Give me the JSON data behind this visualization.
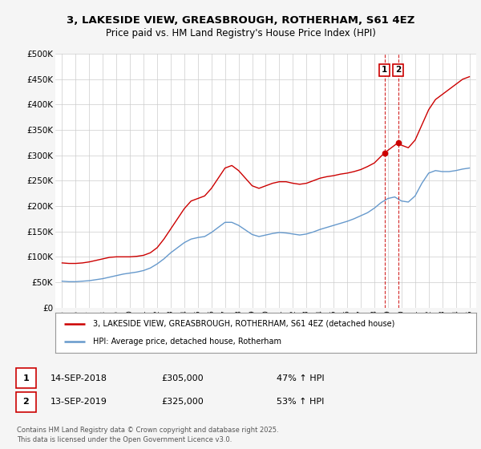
{
  "title": "3, LAKESIDE VIEW, GREASBROUGH, ROTHERHAM, S61 4EZ",
  "subtitle": "Price paid vs. HM Land Registry's House Price Index (HPI)",
  "ylabel_ticks": [
    "£0",
    "£50K",
    "£100K",
    "£150K",
    "£200K",
    "£250K",
    "£300K",
    "£350K",
    "£400K",
    "£450K",
    "£500K"
  ],
  "ytick_values": [
    0,
    50000,
    100000,
    150000,
    200000,
    250000,
    300000,
    350000,
    400000,
    450000,
    500000
  ],
  "ylim": [
    0,
    500000
  ],
  "xlim_start": 1994.5,
  "xlim_end": 2025.5,
  "red_color": "#cc0000",
  "blue_color": "#6699cc",
  "dashed_color": "#cc0000",
  "legend1_label": "3, LAKESIDE VIEW, GREASBROUGH, ROTHERHAM, S61 4EZ (detached house)",
  "legend2_label": "HPI: Average price, detached house, Rotherham",
  "annotation1_date": "14-SEP-2018",
  "annotation1_price": "£305,000",
  "annotation1_pct": "47% ↑ HPI",
  "annotation2_date": "13-SEP-2019",
  "annotation2_price": "£325,000",
  "annotation2_pct": "53% ↑ HPI",
  "footer": "Contains HM Land Registry data © Crown copyright and database right 2025.\nThis data is licensed under the Open Government Licence v3.0.",
  "red_x": [
    1995.0,
    1995.5,
    1996.0,
    1996.5,
    1997.0,
    1997.5,
    1998.0,
    1998.5,
    1999.0,
    1999.5,
    2000.0,
    2000.5,
    2001.0,
    2001.5,
    2002.0,
    2002.5,
    2003.0,
    2003.5,
    2004.0,
    2004.5,
    2005.0,
    2005.5,
    2006.0,
    2006.5,
    2007.0,
    2007.5,
    2008.0,
    2008.5,
    2009.0,
    2009.5,
    2010.0,
    2010.5,
    2011.0,
    2011.5,
    2012.0,
    2012.5,
    2013.0,
    2013.5,
    2014.0,
    2014.5,
    2015.0,
    2015.5,
    2016.0,
    2016.5,
    2017.0,
    2017.5,
    2018.0,
    2018.75,
    2019.75,
    2020.0,
    2020.5,
    2021.0,
    2021.5,
    2022.0,
    2022.5,
    2023.0,
    2023.5,
    2024.0,
    2024.5,
    2025.0
  ],
  "red_y": [
    88000,
    87000,
    87000,
    88000,
    90000,
    93000,
    96000,
    99000,
    100000,
    100000,
    100000,
    101000,
    103000,
    108000,
    118000,
    135000,
    155000,
    175000,
    195000,
    210000,
    215000,
    220000,
    235000,
    255000,
    275000,
    280000,
    270000,
    255000,
    240000,
    235000,
    240000,
    245000,
    248000,
    248000,
    245000,
    243000,
    245000,
    250000,
    255000,
    258000,
    260000,
    263000,
    265000,
    268000,
    272000,
    278000,
    285000,
    305000,
    325000,
    320000,
    315000,
    330000,
    360000,
    390000,
    410000,
    420000,
    430000,
    440000,
    450000,
    455000
  ],
  "blue_x": [
    1995.0,
    1995.5,
    1996.0,
    1996.5,
    1997.0,
    1997.5,
    1998.0,
    1998.5,
    1999.0,
    1999.5,
    2000.0,
    2000.5,
    2001.0,
    2001.5,
    2002.0,
    2002.5,
    2003.0,
    2003.5,
    2004.0,
    2004.5,
    2005.0,
    2005.5,
    2006.0,
    2006.5,
    2007.0,
    2007.5,
    2008.0,
    2008.5,
    2009.0,
    2009.5,
    2010.0,
    2010.5,
    2011.0,
    2011.5,
    2012.0,
    2012.5,
    2013.0,
    2013.5,
    2014.0,
    2014.5,
    2015.0,
    2015.5,
    2016.0,
    2016.5,
    2017.0,
    2017.5,
    2018.0,
    2018.5,
    2019.0,
    2019.5,
    2020.0,
    2020.5,
    2021.0,
    2021.5,
    2022.0,
    2022.5,
    2023.0,
    2023.5,
    2024.0,
    2024.5,
    2025.0
  ],
  "blue_y": [
    52000,
    51000,
    51000,
    52000,
    53000,
    55000,
    57000,
    60000,
    63000,
    66000,
    68000,
    70000,
    73000,
    78000,
    86000,
    96000,
    108000,
    118000,
    128000,
    135000,
    138000,
    140000,
    148000,
    158000,
    168000,
    168000,
    162000,
    153000,
    144000,
    140000,
    143000,
    146000,
    148000,
    147000,
    145000,
    143000,
    145000,
    149000,
    154000,
    158000,
    162000,
    166000,
    170000,
    175000,
    181000,
    187000,
    196000,
    207000,
    215000,
    218000,
    210000,
    208000,
    220000,
    245000,
    265000,
    270000,
    268000,
    268000,
    270000,
    273000,
    275000
  ],
  "marker1_x": 2018.75,
  "marker1_y": 305000,
  "marker2_x": 2019.75,
  "marker2_y": 325000,
  "vline1_x": 2018.75,
  "vline2_x": 2019.75,
  "background_color": "#f5f5f5",
  "plot_bg_color": "#ffffff",
  "grid_color": "#cccccc"
}
